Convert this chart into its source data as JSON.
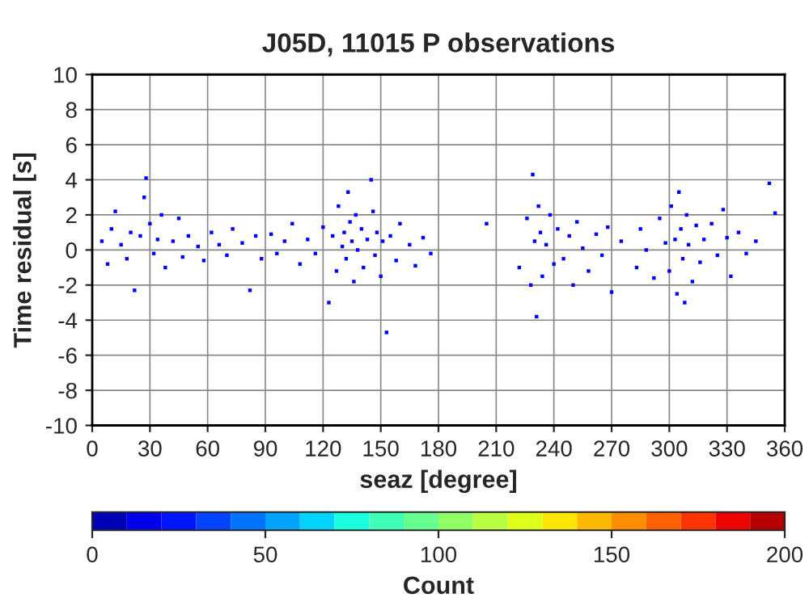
{
  "chart_data": {
    "type": "scatter",
    "title": "J05D, 11015 P observations",
    "xlabel": "seaz [degree]",
    "ylabel": "Time residual [s]",
    "clabel": "Count",
    "xlim": [
      0,
      360
    ],
    "xticks": [
      0,
      30,
      60,
      90,
      120,
      150,
      180,
      210,
      240,
      270,
      300,
      330,
      360
    ],
    "ylim": [
      -10,
      10
    ],
    "yticks": [
      -10,
      -8,
      -6,
      -4,
      -2,
      0,
      2,
      4,
      6,
      8,
      10
    ],
    "clim": [
      0,
      200
    ],
    "cticks": [
      0,
      50,
      100,
      150,
      200
    ],
    "grid": true,
    "marker": "square",
    "series": [
      {
        "color": "#0000ff",
        "x": [
          5,
          8,
          10,
          12,
          15,
          18,
          20,
          22,
          25,
          27,
          28,
          30,
          32,
          34,
          36,
          38,
          42,
          45,
          47,
          50,
          55,
          58,
          62,
          66,
          70,
          73,
          78,
          82,
          85,
          88,
          93,
          96,
          100,
          104,
          108,
          112,
          116,
          120,
          123,
          125,
          127,
          128,
          130,
          131,
          132,
          133,
          134,
          135,
          136,
          137,
          138,
          140,
          141,
          143,
          145,
          146,
          147,
          148,
          150,
          151,
          153,
          155,
          158,
          160,
          165,
          168,
          172,
          176,
          205,
          222,
          226,
          228,
          229,
          230,
          231,
          232,
          233,
          234,
          236,
          238,
          240,
          242,
          245,
          248,
          250,
          252,
          255,
          258,
          262,
          265,
          268,
          270,
          275,
          283,
          285,
          288,
          292,
          295,
          298,
          300,
          301,
          303,
          304,
          305,
          306,
          307,
          308,
          309,
          310,
          312,
          314,
          316,
          318,
          322,
          325,
          328,
          330,
          332,
          336,
          340,
          345,
          352,
          355
        ],
        "values": [
          0.5,
          -0.8,
          1.2,
          2.2,
          0.3,
          -0.5,
          1.0,
          -2.3,
          0.8,
          3.0,
          4.1,
          1.5,
          -0.2,
          0.6,
          2.0,
          -1.0,
          0.5,
          1.8,
          -0.4,
          0.8,
          0.2,
          -0.6,
          1.0,
          0.3,
          -0.3,
          1.2,
          0.4,
          -2.3,
          0.8,
          -0.5,
          0.9,
          -0.2,
          0.5,
          1.5,
          -0.8,
          0.6,
          -0.2,
          1.3,
          -3.0,
          0.8,
          -1.2,
          2.5,
          0.2,
          1.0,
          -0.5,
          3.3,
          1.6,
          0.5,
          -1.8,
          2.0,
          0.0,
          1.2,
          -1.0,
          0.6,
          4.0,
          2.2,
          -0.3,
          1.0,
          -1.5,
          0.5,
          -4.7,
          0.8,
          -0.6,
          1.5,
          0.3,
          -0.9,
          0.7,
          -0.2,
          1.5,
          -1.0,
          1.8,
          -2.0,
          4.3,
          0.5,
          -3.8,
          2.5,
          1.0,
          -1.5,
          0.3,
          2.0,
          -0.8,
          1.2,
          -0.5,
          0.8,
          -2.0,
          1.6,
          0.1,
          -1.2,
          0.9,
          -0.3,
          1.3,
          -2.4,
          0.5,
          -1.0,
          1.2,
          0.0,
          -1.6,
          1.8,
          0.4,
          -1.2,
          2.5,
          0.6,
          -2.5,
          3.3,
          1.2,
          -0.5,
          -3.0,
          2.0,
          0.3,
          -1.8,
          1.4,
          -0.7,
          0.6,
          1.5,
          -0.3,
          2.3,
          0.7,
          -1.5,
          1.0,
          -0.2,
          0.5,
          3.8,
          2.1
        ]
      }
    ]
  }
}
